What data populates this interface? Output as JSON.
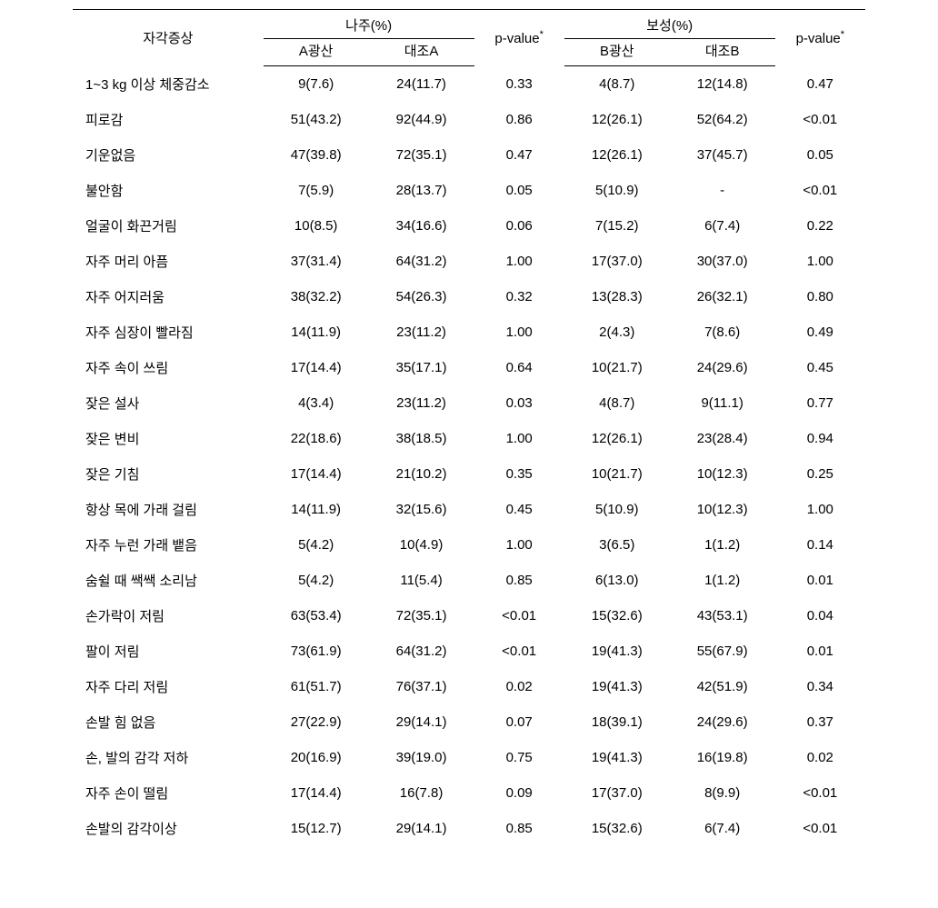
{
  "headers": {
    "symptom": "자각증상",
    "region1": "나주(%)",
    "region2": "보성(%)",
    "sub_a1": "A광산",
    "sub_a2": "대조A",
    "sub_b1": "B광산",
    "sub_b2": "대조B",
    "pvalue": "p-value",
    "asterisk": "*"
  },
  "rows": [
    {
      "symptom": "1~3 kg 이상 체중감소",
      "a1": "9(7.6)",
      "a2": "24(11.7)",
      "p1": "0.33",
      "b1": "4(8.7)",
      "b2": "12(14.8)",
      "p2": "0.47"
    },
    {
      "symptom": "피로감",
      "a1": "51(43.2)",
      "a2": "92(44.9)",
      "p1": "0.86",
      "b1": "12(26.1)",
      "b2": "52(64.2)",
      "p2": "<0.01"
    },
    {
      "symptom": "기운없음",
      "a1": "47(39.8)",
      "a2": "72(35.1)",
      "p1": "0.47",
      "b1": "12(26.1)",
      "b2": "37(45.7)",
      "p2": "0.05"
    },
    {
      "symptom": "불안함",
      "a1": "7(5.9)",
      "a2": "28(13.7)",
      "p1": "0.05",
      "b1": "5(10.9)",
      "b2": "-",
      "p2": "<0.01"
    },
    {
      "symptom": "얼굴이 화끈거림",
      "a1": "10(8.5)",
      "a2": "34(16.6)",
      "p1": "0.06",
      "b1": "7(15.2)",
      "b2": "6(7.4)",
      "p2": "0.22"
    },
    {
      "symptom": "자주 머리 아픔",
      "a1": "37(31.4)",
      "a2": "64(31.2)",
      "p1": "1.00",
      "b1": "17(37.0)",
      "b2": "30(37.0)",
      "p2": "1.00"
    },
    {
      "symptom": "자주 어지러움",
      "a1": "38(32.2)",
      "a2": "54(26.3)",
      "p1": "0.32",
      "b1": "13(28.3)",
      "b2": "26(32.1)",
      "p2": "0.80"
    },
    {
      "symptom": "자주 심장이 빨라짐",
      "a1": "14(11.9)",
      "a2": "23(11.2)",
      "p1": "1.00",
      "b1": "2(4.3)",
      "b2": "7(8.6)",
      "p2": "0.49"
    },
    {
      "symptom": "자주 속이 쓰림",
      "a1": "17(14.4)",
      "a2": "35(17.1)",
      "p1": "0.64",
      "b1": "10(21.7)",
      "b2": "24(29.6)",
      "p2": "0.45"
    },
    {
      "symptom": "잦은 설사",
      "a1": "4(3.4)",
      "a2": "23(11.2)",
      "p1": "0.03",
      "b1": "4(8.7)",
      "b2": "9(11.1)",
      "p2": "0.77"
    },
    {
      "symptom": "잦은 변비",
      "a1": "22(18.6)",
      "a2": "38(18.5)",
      "p1": "1.00",
      "b1": "12(26.1)",
      "b2": "23(28.4)",
      "p2": "0.94"
    },
    {
      "symptom": "잦은 기침",
      "a1": "17(14.4)",
      "a2": "21(10.2)",
      "p1": "0.35",
      "b1": "10(21.7)",
      "b2": "10(12.3)",
      "p2": "0.25"
    },
    {
      "symptom": "항상 목에 가래 걸림",
      "a1": "14(11.9)",
      "a2": "32(15.6)",
      "p1": "0.45",
      "b1": "5(10.9)",
      "b2": "10(12.3)",
      "p2": "1.00"
    },
    {
      "symptom": "자주 누런 가래 뱉음",
      "a1": "5(4.2)",
      "a2": "10(4.9)",
      "p1": "1.00",
      "b1": "3(6.5)",
      "b2": "1(1.2)",
      "p2": "0.14"
    },
    {
      "symptom": "숨쉴 때 쌕쌕 소리남",
      "a1": "5(4.2)",
      "a2": "11(5.4)",
      "p1": "0.85",
      "b1": "6(13.0)",
      "b2": "1(1.2)",
      "p2": "0.01"
    },
    {
      "symptom": "손가락이 저림",
      "a1": "63(53.4)",
      "a2": "72(35.1)",
      "p1": "<0.01",
      "b1": "15(32.6)",
      "b2": "43(53.1)",
      "p2": "0.04"
    },
    {
      "symptom": "팔이 저림",
      "a1": "73(61.9)",
      "a2": "64(31.2)",
      "p1": "<0.01",
      "b1": "19(41.3)",
      "b2": "55(67.9)",
      "p2": "0.01"
    },
    {
      "symptom": "자주 다리 저림",
      "a1": "61(51.7)",
      "a2": "76(37.1)",
      "p1": "0.02",
      "b1": "19(41.3)",
      "b2": "42(51.9)",
      "p2": "0.34"
    },
    {
      "symptom": "손발 힘 없음",
      "a1": "27(22.9)",
      "a2": "29(14.1)",
      "p1": "0.07",
      "b1": "18(39.1)",
      "b2": "24(29.6)",
      "p2": "0.37"
    },
    {
      "symptom": "손, 발의 감각 저하",
      "a1": "20(16.9)",
      "a2": "39(19.0)",
      "p1": "0.75",
      "b1": "19(41.3)",
      "b2": "16(19.8)",
      "p2": "0.02"
    },
    {
      "symptom": "자주 손이 떨림",
      "a1": "17(14.4)",
      "a2": "16(7.8)",
      "p1": "0.09",
      "b1": "17(37.0)",
      "b2": "8(9.9)",
      "p2": "<0.01"
    },
    {
      "symptom": "손발의 감각이상",
      "a1": "15(12.7)",
      "a2": "29(14.1)",
      "p1": "0.85",
      "b1": "15(32.6)",
      "b2": "6(7.4)",
      "p2": "<0.01"
    }
  ],
  "styling": {
    "table_type": "table",
    "border_top_width": 1.5,
    "border_color": "#000000",
    "background_color": "#ffffff",
    "text_color": "#000000",
    "font_size_body": 15,
    "font_size_super": 11,
    "row_padding_v": 9,
    "header_padding_v": 6
  }
}
